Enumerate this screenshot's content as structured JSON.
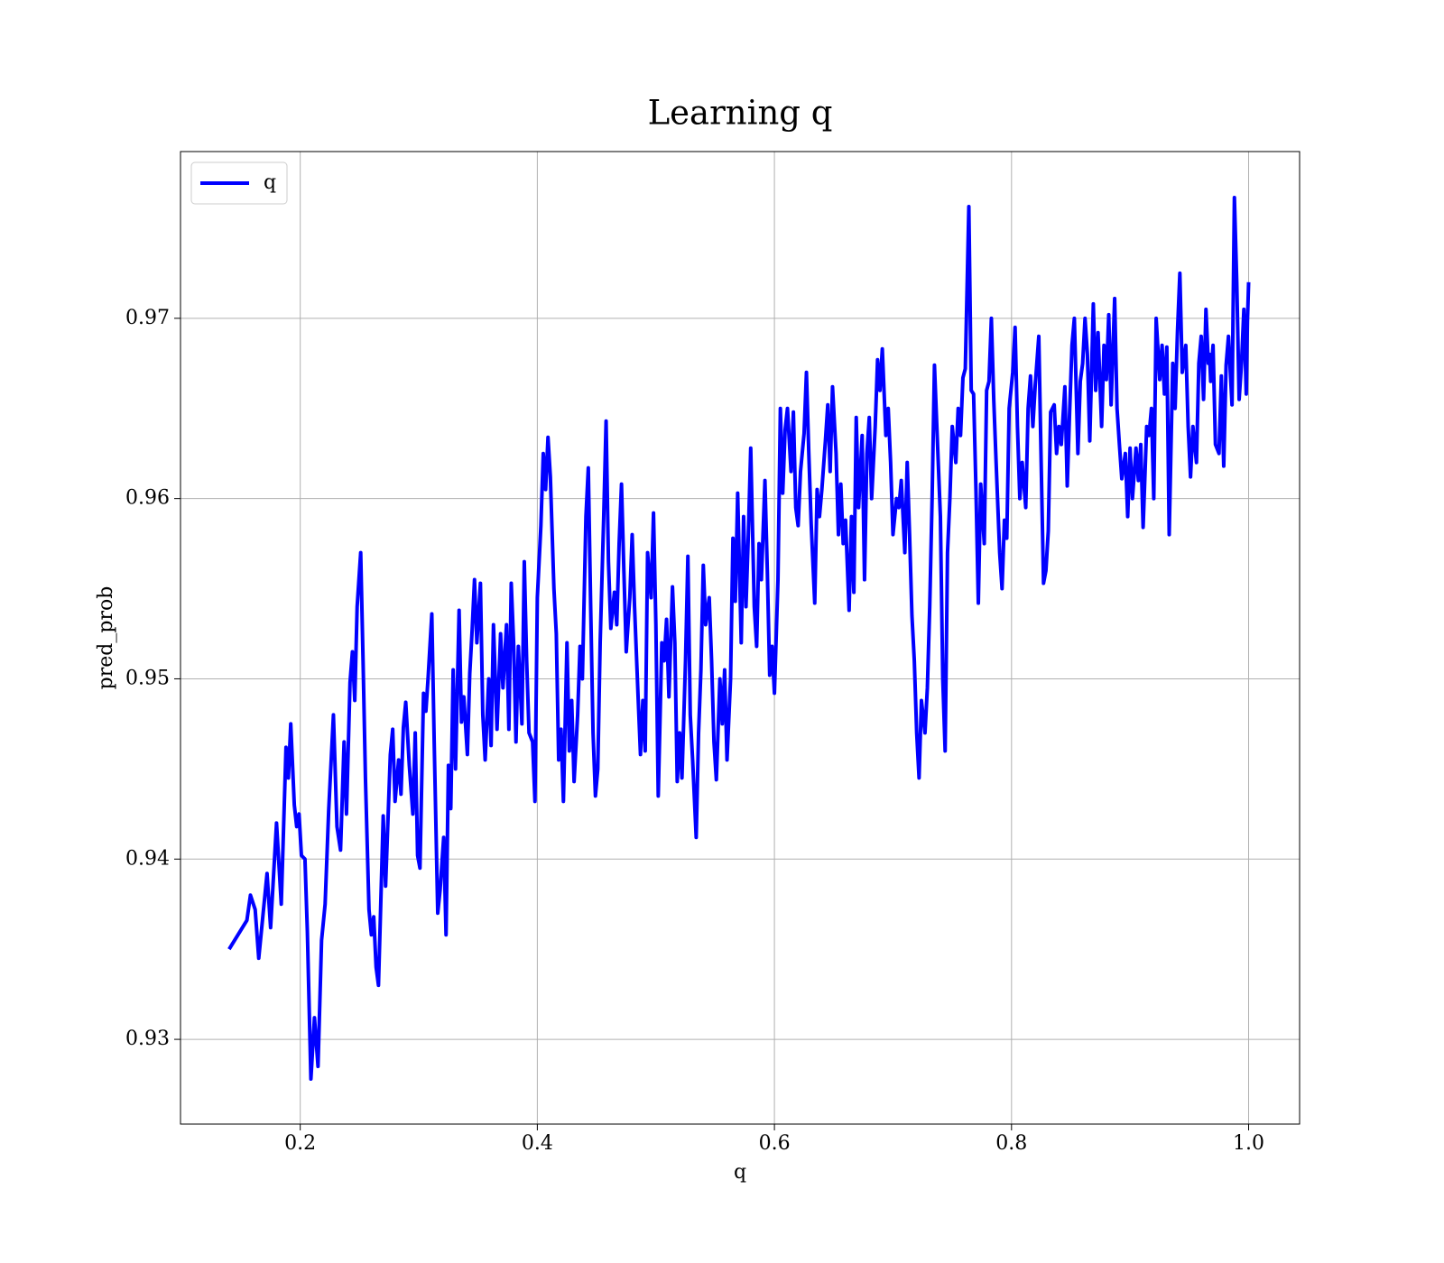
{
  "chart_data": {
    "type": "line",
    "title": "Learning q",
    "xlabel": "q",
    "ylabel": "pred_prob",
    "x": [
      0.14,
      0.155,
      0.158,
      0.162,
      0.165,
      0.172,
      0.175,
      0.18,
      0.184,
      0.188,
      0.19,
      0.192,
      0.195,
      0.197,
      0.199,
      0.201,
      0.204,
      0.206,
      0.209,
      0.212,
      0.215,
      0.218,
      0.221,
      0.224,
      0.228,
      0.231,
      0.234,
      0.237,
      0.239,
      0.242,
      0.244,
      0.246,
      0.248,
      0.251,
      0.253,
      0.255,
      0.258,
      0.26,
      0.262,
      0.264,
      0.266,
      0.27,
      0.272,
      0.276,
      0.278,
      0.28,
      0.283,
      0.285,
      0.287,
      0.289,
      0.292,
      0.295,
      0.297,
      0.299,
      0.301,
      0.304,
      0.306,
      0.308,
      0.311,
      0.313,
      0.316,
      0.318,
      0.321,
      0.323,
      0.325,
      0.327,
      0.329,
      0.331,
      0.334,
      0.336,
      0.338,
      0.341,
      0.343,
      0.345,
      0.347,
      0.349,
      0.352,
      0.354,
      0.356,
      0.359,
      0.361,
      0.363,
      0.366,
      0.369,
      0.371,
      0.374,
      0.376,
      0.378,
      0.38,
      0.382,
      0.384,
      0.387,
      0.389,
      0.391,
      0.393,
      0.396,
      0.398,
      0.4,
      0.403,
      0.405,
      0.407,
      0.409,
      0.411,
      0.414,
      0.416,
      0.418,
      0.42,
      0.422,
      0.425,
      0.427,
      0.429,
      0.431,
      0.434,
      0.436,
      0.438,
      0.441,
      0.443,
      0.445,
      0.447,
      0.449,
      0.451,
      0.453,
      0.456,
      0.458,
      0.46,
      0.462,
      0.465,
      0.467,
      0.469,
      0.471,
      0.473,
      0.475,
      0.478,
      0.48,
      0.482,
      0.485,
      0.487,
      0.489,
      0.491,
      0.493,
      0.496,
      0.498,
      0.5,
      0.502,
      0.505,
      0.507,
      0.509,
      0.511,
      0.514,
      0.516,
      0.518,
      0.52,
      0.522,
      0.525,
      0.527,
      0.529,
      0.531,
      0.534,
      0.536,
      0.538,
      0.54,
      0.542,
      0.545,
      0.547,
      0.549,
      0.551,
      0.554,
      0.556,
      0.558,
      0.56,
      0.563,
      0.565,
      0.567,
      0.569,
      0.572,
      0.574,
      0.576,
      0.578,
      0.58,
      0.583,
      0.585,
      0.587,
      0.589,
      0.592,
      0.594,
      0.596,
      0.598,
      0.6,
      0.603,
      0.605,
      0.607,
      0.609,
      0.611,
      0.614,
      0.616,
      0.618,
      0.62,
      0.622,
      0.625,
      0.627,
      0.629,
      0.631,
      0.634,
      0.636,
      0.638,
      0.64,
      0.643,
      0.645,
      0.647,
      0.649,
      0.652,
      0.654,
      0.656,
      0.658,
      0.66,
      0.663,
      0.665,
      0.667,
      0.669,
      0.671,
      0.674,
      0.676,
      0.678,
      0.68,
      0.682,
      0.685,
      0.687,
      0.689,
      0.691,
      0.694,
      0.696,
      0.698,
      0.7,
      0.703,
      0.705,
      0.707,
      0.71,
      0.712,
      0.714,
      0.716,
      0.718,
      0.72,
      0.722,
      0.724,
      0.727,
      0.729,
      0.731,
      0.733,
      0.735,
      0.737,
      0.74,
      0.742,
      0.744,
      0.746,
      0.748,
      0.75,
      0.753,
      0.755,
      0.757,
      0.759,
      0.761,
      0.764,
      0.766,
      0.768,
      0.77,
      0.772,
      0.774,
      0.777,
      0.779,
      0.781,
      0.783,
      0.785,
      0.787,
      0.79,
      0.792,
      0.794,
      0.796,
      0.798,
      0.801,
      0.803,
      0.805,
      0.807,
      0.809,
      0.812,
      0.814,
      0.816,
      0.818,
      0.82,
      0.823,
      0.825,
      0.827,
      0.829,
      0.831,
      0.833,
      0.836,
      0.838,
      0.84,
      0.842,
      0.845,
      0.847,
      0.849,
      0.851,
      0.853,
      0.856,
      0.858,
      0.86,
      0.862,
      0.864,
      0.866,
      0.869,
      0.871,
      0.873,
      0.876,
      0.878,
      0.88,
      0.882,
      0.884,
      0.887,
      0.889,
      0.891,
      0.893,
      0.896,
      0.898,
      0.9,
      0.902,
      0.905,
      0.907,
      0.909,
      0.911,
      0.914,
      0.916,
      0.918,
      0.92,
      0.922,
      0.925,
      0.927,
      0.929,
      0.931,
      0.933,
      0.936,
      0.938,
      0.94,
      0.942,
      0.944,
      0.947,
      0.949,
      0.951,
      0.953,
      0.956,
      0.958,
      0.96,
      0.962,
      0.964,
      0.966,
      0.967,
      0.968,
      0.97,
      0.972,
      0.975,
      0.977,
      0.979,
      0.981,
      0.983,
      0.986,
      0.988,
      0.99,
      0.992,
      0.994,
      0.996,
      0.998,
      0.999,
      1.0
    ],
    "series": [
      {
        "name": "q",
        "color": "#0000ff",
        "values": [
          0.935,
          0.9366,
          0.938,
          0.9372,
          0.9345,
          0.9392,
          0.9362,
          0.942,
          0.9375,
          0.9462,
          0.9445,
          0.9475,
          0.943,
          0.9418,
          0.9425,
          0.9402,
          0.94,
          0.936,
          0.9278,
          0.9312,
          0.9285,
          0.9355,
          0.9375,
          0.9427,
          0.948,
          0.9418,
          0.9405,
          0.9465,
          0.9425,
          0.9498,
          0.9515,
          0.9488,
          0.954,
          0.957,
          0.951,
          0.9445,
          0.9372,
          0.9358,
          0.9368,
          0.934,
          0.933,
          0.9424,
          0.9385,
          0.9458,
          0.9472,
          0.9432,
          0.9455,
          0.9436,
          0.9473,
          0.9487,
          0.9452,
          0.9425,
          0.947,
          0.9402,
          0.9395,
          0.9492,
          0.9482,
          0.9502,
          0.9536,
          0.9465,
          0.937,
          0.9383,
          0.9412,
          0.9358,
          0.9452,
          0.9428,
          0.9505,
          0.945,
          0.9538,
          0.9476,
          0.949,
          0.9458,
          0.9503,
          0.9527,
          0.9555,
          0.952,
          0.9553,
          0.948,
          0.9455,
          0.95,
          0.9463,
          0.953,
          0.9472,
          0.9525,
          0.9495,
          0.953,
          0.9472,
          0.9553,
          0.952,
          0.9465,
          0.9518,
          0.9475,
          0.9565,
          0.951,
          0.947,
          0.9465,
          0.9432,
          0.9545,
          0.9585,
          0.9625,
          0.9605,
          0.9634,
          0.9612,
          0.955,
          0.9525,
          0.9455,
          0.9472,
          0.9432,
          0.952,
          0.946,
          0.9488,
          0.9443,
          0.948,
          0.9518,
          0.95,
          0.959,
          0.9617,
          0.954,
          0.947,
          0.9435,
          0.945,
          0.952,
          0.959,
          0.9643,
          0.9565,
          0.9528,
          0.9548,
          0.953,
          0.9575,
          0.9608,
          0.956,
          0.9515,
          0.9545,
          0.958,
          0.954,
          0.949,
          0.9458,
          0.9488,
          0.946,
          0.957,
          0.9545,
          0.9592,
          0.953,
          0.9435,
          0.952,
          0.951,
          0.9533,
          0.949,
          0.9551,
          0.952,
          0.9443,
          0.947,
          0.9445,
          0.951,
          0.9568,
          0.948,
          0.9455,
          0.9412,
          0.947,
          0.9505,
          0.9563,
          0.953,
          0.9545,
          0.951,
          0.9465,
          0.9444,
          0.95,
          0.9475,
          0.9505,
          0.9455,
          0.95,
          0.9578,
          0.9543,
          0.9603,
          0.952,
          0.959,
          0.954,
          0.958,
          0.9628,
          0.954,
          0.9518,
          0.9575,
          0.9555,
          0.961,
          0.956,
          0.9502,
          0.9518,
          0.9492,
          0.9555,
          0.965,
          0.9603,
          0.9638,
          0.965,
          0.9615,
          0.9648,
          0.9595,
          0.9585,
          0.9615,
          0.9636,
          0.967,
          0.9625,
          0.9586,
          0.9542,
          0.9605,
          0.959,
          0.9605,
          0.9632,
          0.9652,
          0.9615,
          0.9662,
          0.9625,
          0.958,
          0.9608,
          0.9575,
          0.9588,
          0.9538,
          0.959,
          0.9548,
          0.9645,
          0.9595,
          0.9635,
          0.9555,
          0.9625,
          0.9645,
          0.96,
          0.964,
          0.9677,
          0.966,
          0.9683,
          0.9635,
          0.965,
          0.962,
          0.958,
          0.96,
          0.9595,
          0.961,
          0.957,
          0.962,
          0.958,
          0.9535,
          0.951,
          0.947,
          0.9445,
          0.9488,
          0.947,
          0.9495,
          0.954,
          0.96,
          0.9674,
          0.964,
          0.959,
          0.95,
          0.946,
          0.957,
          0.96,
          0.964,
          0.962,
          0.965,
          0.9635,
          0.9667,
          0.9672,
          0.9762,
          0.966,
          0.9658,
          0.9605,
          0.9542,
          0.9608,
          0.9575,
          0.966,
          0.9665,
          0.97,
          0.9655,
          0.962,
          0.957,
          0.955,
          0.9588,
          0.9578,
          0.965,
          0.967,
          0.9695,
          0.964,
          0.96,
          0.962,
          0.9595,
          0.965,
          0.9668,
          0.964,
          0.9663,
          0.969,
          0.962,
          0.9553,
          0.956,
          0.9582,
          0.9648,
          0.9652,
          0.9625,
          0.964,
          0.963,
          0.9662,
          0.9607,
          0.9648,
          0.9685,
          0.97,
          0.9625,
          0.9665,
          0.9675,
          0.97,
          0.968,
          0.9632,
          0.9708,
          0.966,
          0.9692,
          0.964,
          0.9685,
          0.9666,
          0.9702,
          0.9652,
          0.9711,
          0.965,
          0.963,
          0.9611,
          0.9625,
          0.959,
          0.9628,
          0.96,
          0.9628,
          0.961,
          0.963,
          0.9584,
          0.964,
          0.9635,
          0.965,
          0.96,
          0.97,
          0.9666,
          0.9685,
          0.9658,
          0.9684,
          0.958,
          0.9675,
          0.965,
          0.9693,
          0.9725,
          0.967,
          0.9685,
          0.964,
          0.9612,
          0.964,
          0.962,
          0.9675,
          0.969,
          0.9655,
          0.9705,
          0.9675,
          0.968,
          0.9665,
          0.9685,
          0.963,
          0.9625,
          0.9668,
          0.9618,
          0.9674,
          0.969,
          0.9652,
          0.9767,
          0.972,
          0.9655,
          0.9675,
          0.9705,
          0.9658,
          0.9698,
          0.972
        ]
      }
    ],
    "xlim": [
      0.099,
      1.043
    ],
    "ylim": [
      0.9253,
      0.97925
    ],
    "xticks": [
      0.2,
      0.4,
      0.6,
      0.8,
      {
        "value": 1.0,
        "label": "1.0"
      }
    ],
    "yticks": [
      0.93,
      0.94,
      0.95,
      0.96,
      0.97
    ],
    "grid": true,
    "legend": "upper-left"
  }
}
